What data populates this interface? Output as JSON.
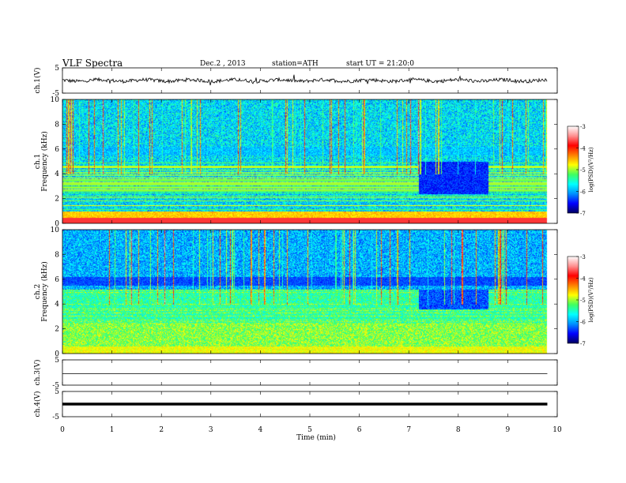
{
  "header": {
    "title": "VLF Spectra",
    "date": "Dec.2 , 2013",
    "station": "station=ATH",
    "start": "start UT = 21:20:0"
  },
  "colorbar": {
    "label": "log(PSD)(V²/Hz)",
    "ticks": [
      "-3",
      "-4",
      "-5",
      "-6",
      "-7"
    ],
    "colors": [
      "#000060",
      "#0000ff",
      "#0090ff",
      "#00ffff",
      "#40ff60",
      "#ffff00",
      "#ff8000",
      "#ff0000",
      "#ff9090",
      "#ffffff"
    ]
  },
  "chart_data": [
    {
      "type": "line",
      "ylabel": "ch.1(V)",
      "ylim": [
        -5,
        5
      ],
      "yticks": [
        "5",
        "-5"
      ],
      "baseline": 0,
      "trace": "noisy"
    },
    {
      "type": "heatmap",
      "ylabel": "ch.1",
      "ylabel2": "Frequency (kHz)",
      "ylim": [
        0,
        10
      ],
      "yticks": [
        "10",
        "8",
        "6",
        "4",
        "2",
        "0"
      ],
      "xlim": [
        0,
        10
      ],
      "data_end_min": 9.8
    },
    {
      "type": "heatmap",
      "ylabel": "ch.2",
      "ylabel2": "Frequency (kHz)",
      "ylim": [
        0,
        10
      ],
      "yticks": [
        "10",
        "8",
        "6",
        "4",
        "2",
        "0"
      ],
      "xlim": [
        0,
        10
      ],
      "data_end_min": 9.8
    },
    {
      "type": "line",
      "ylabel": "ch.3(V)",
      "ylim": [
        -5,
        5
      ],
      "yticks": [
        "5",
        "-5"
      ],
      "baseline": -0.5,
      "trace": "flat"
    },
    {
      "type": "line",
      "ylabel": "ch.4(V)",
      "ylim": [
        -5,
        5
      ],
      "yticks": [
        "5",
        "-5"
      ],
      "baseline": 0,
      "trace": "thick"
    }
  ],
  "xaxis": {
    "label": "Time (min)",
    "ticks": [
      "0",
      "1",
      "2",
      "3",
      "4",
      "5",
      "6",
      "7",
      "8",
      "9",
      "10"
    ]
  }
}
